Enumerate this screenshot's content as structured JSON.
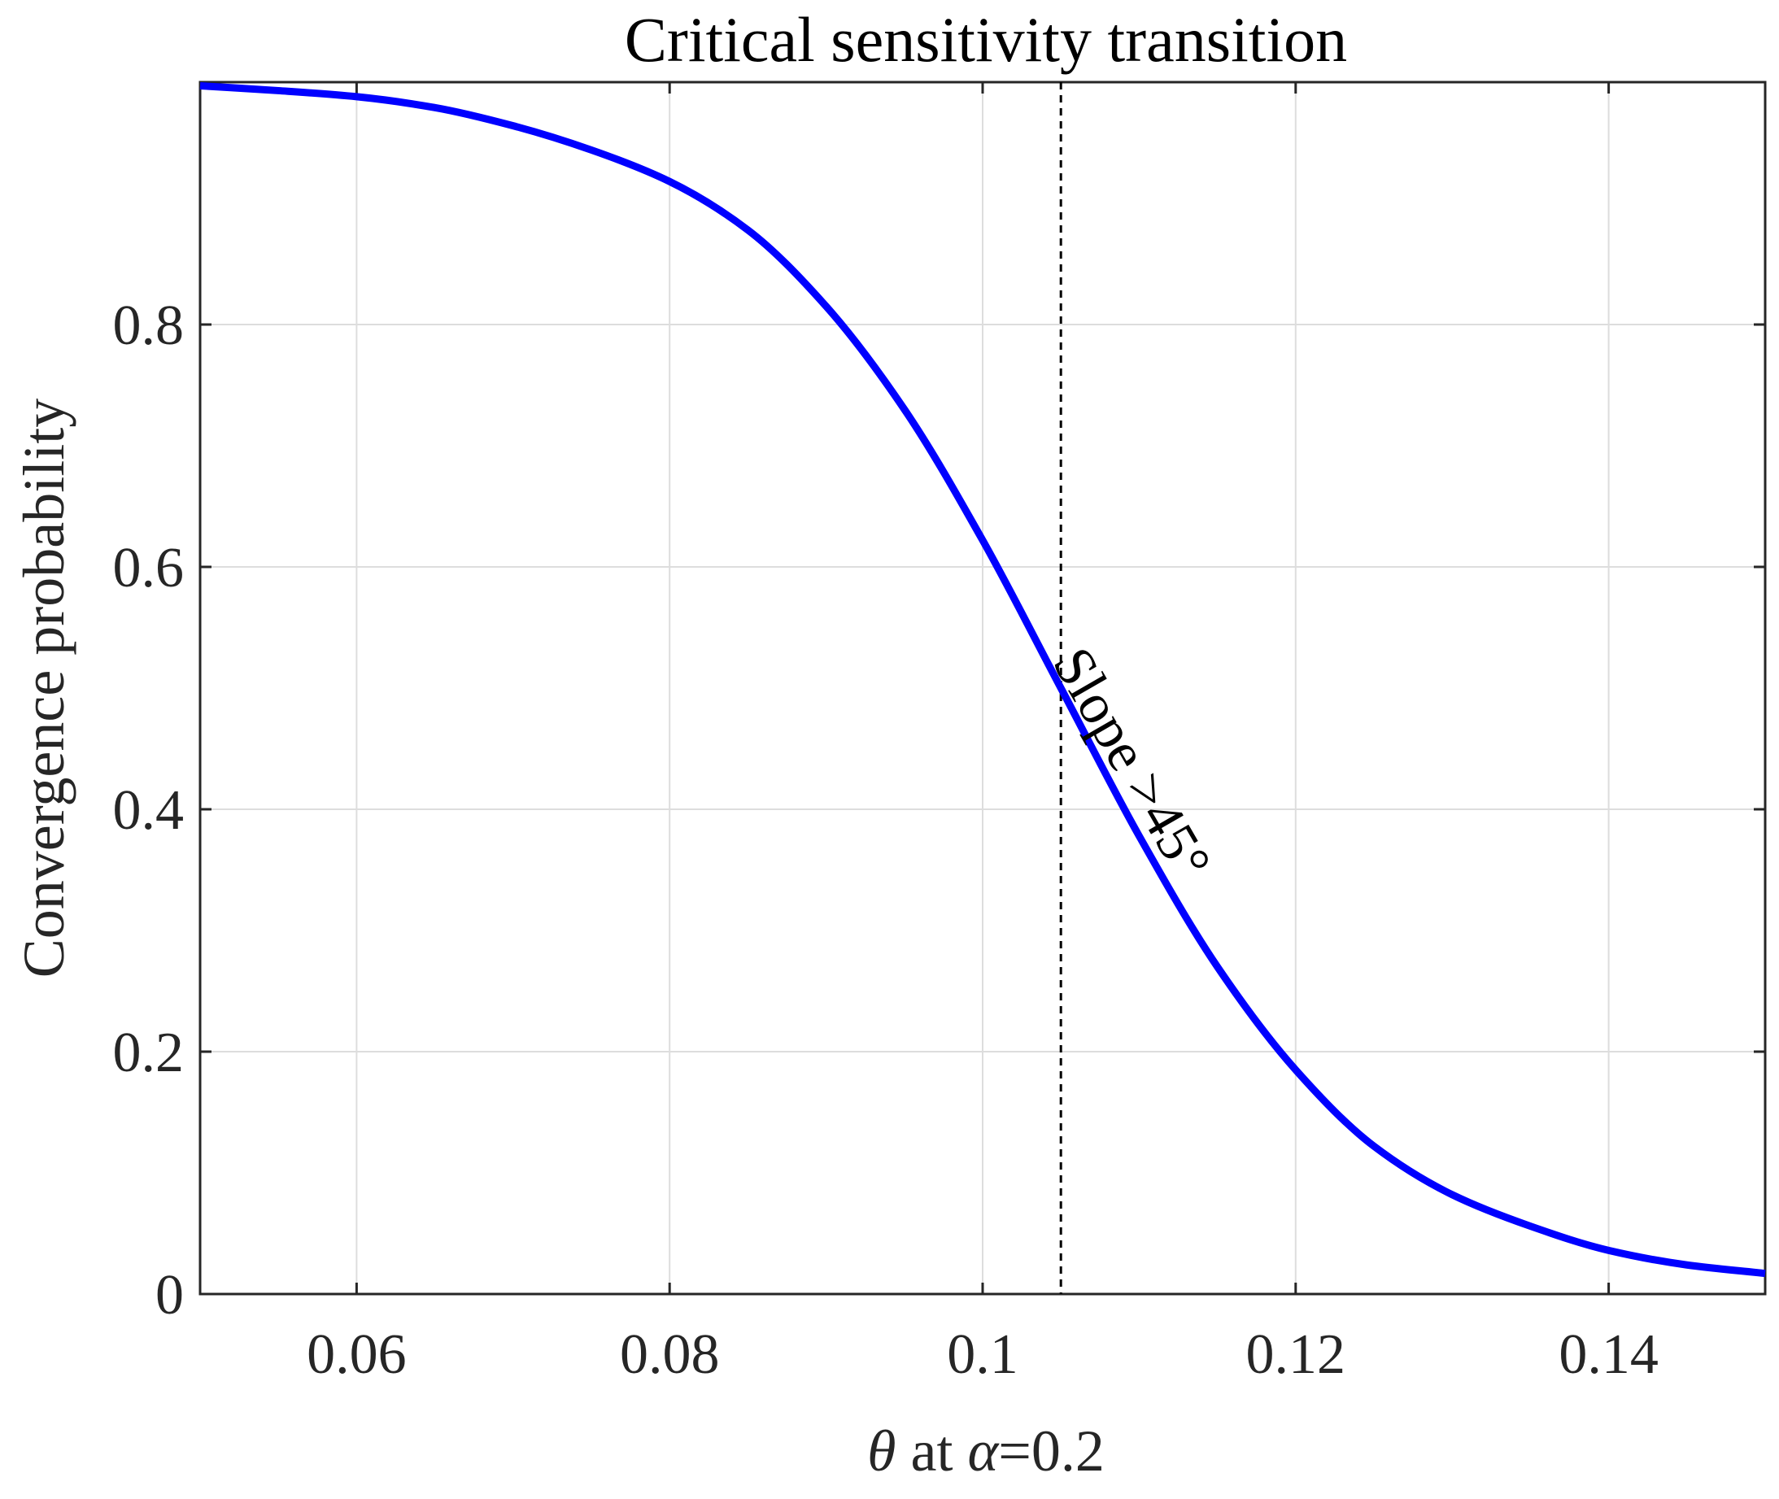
{
  "chart_data": {
    "type": "line",
    "title": "Critical sensitivity transition",
    "xlabel": "θ at α=0.2",
    "xlabel_parts": {
      "theta": "θ",
      "mid": " at ",
      "alpha": "α",
      "tail": "=0.2"
    },
    "ylabel": "Convergence probability",
    "xlim": [
      0.05,
      0.15
    ],
    "ylim": [
      0,
      1
    ],
    "xticks": [
      0.06,
      0.08,
      0.1,
      0.12,
      0.14
    ],
    "xtick_labels": [
      "0.06",
      "0.08",
      "0.1",
      "0.12",
      "0.14"
    ],
    "yticks": [
      0,
      0.2,
      0.4,
      0.6,
      0.8
    ],
    "ytick_labels": [
      "0",
      "0.2",
      "0.4",
      "0.6",
      "0.8"
    ],
    "grid": true,
    "series": [
      {
        "name": "Convergence probability",
        "color": "#0000ff",
        "x": [
          0.05,
          0.055,
          0.06,
          0.065,
          0.07,
          0.075,
          0.08,
          0.085,
          0.09,
          0.095,
          0.1,
          0.105,
          0.11,
          0.115,
          0.12,
          0.125,
          0.13,
          0.135,
          0.14,
          0.145,
          0.15
        ],
        "y": [
          0.997,
          0.993,
          0.988,
          0.979,
          0.964,
          0.944,
          0.918,
          0.878,
          0.815,
          0.73,
          0.622,
          0.5,
          0.378,
          0.27,
          0.185,
          0.122,
          0.082,
          0.056,
          0.036,
          0.024,
          0.017
        ]
      }
    ],
    "reference_line": {
      "orientation": "vertical",
      "x": 0.105,
      "style": "dashed",
      "color": "#000000"
    },
    "annotation": {
      "text": "Slope >45°",
      "x": 0.1085,
      "y": 0.43,
      "rotation": 60
    }
  }
}
